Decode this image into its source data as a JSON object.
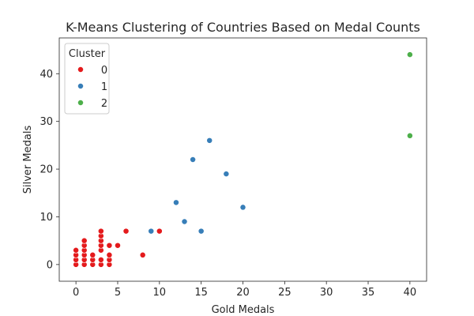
{
  "chart_data": {
    "type": "scatter",
    "title": "K-Means Clustering of Countries Based on Medal Counts",
    "xlabel": "Gold Medals",
    "ylabel": "Silver Medals",
    "xlim": [
      -2,
      42
    ],
    "ylim": [
      -3.5,
      47.5
    ],
    "xticks": [
      0,
      5,
      10,
      15,
      20,
      25,
      30,
      35,
      40
    ],
    "yticks": [
      0,
      10,
      20,
      30,
      40
    ],
    "grid": false,
    "legend": {
      "title": "Cluster",
      "placement": "top-left"
    },
    "colors": {
      "0": "#e41a1c",
      "1": "#377eb8",
      "2": "#4daf4a"
    },
    "series": [
      {
        "name": "0",
        "points": [
          [
            0,
            0
          ],
          [
            0,
            1
          ],
          [
            0,
            2
          ],
          [
            0,
            3
          ],
          [
            1,
            0
          ],
          [
            1,
            1
          ],
          [
            1,
            2
          ],
          [
            1,
            3
          ],
          [
            1,
            4
          ],
          [
            1,
            5
          ],
          [
            2,
            0
          ],
          [
            2,
            1
          ],
          [
            2,
            2
          ],
          [
            3,
            0
          ],
          [
            3,
            1
          ],
          [
            3,
            3
          ],
          [
            3,
            4
          ],
          [
            3,
            5
          ],
          [
            3,
            6
          ],
          [
            3,
            7
          ],
          [
            4,
            0
          ],
          [
            4,
            1
          ],
          [
            4,
            2
          ],
          [
            4,
            4
          ],
          [
            5,
            4
          ],
          [
            6,
            7
          ],
          [
            8,
            2
          ],
          [
            10,
            7
          ]
        ]
      },
      {
        "name": "1",
        "points": [
          [
            9,
            7
          ],
          [
            12,
            13
          ],
          [
            13,
            9
          ],
          [
            14,
            22
          ],
          [
            15,
            7
          ],
          [
            16,
            26
          ],
          [
            18,
            19
          ],
          [
            20,
            12
          ]
        ]
      },
      {
        "name": "2",
        "points": [
          [
            40,
            44
          ],
          [
            40,
            27
          ]
        ]
      }
    ]
  }
}
